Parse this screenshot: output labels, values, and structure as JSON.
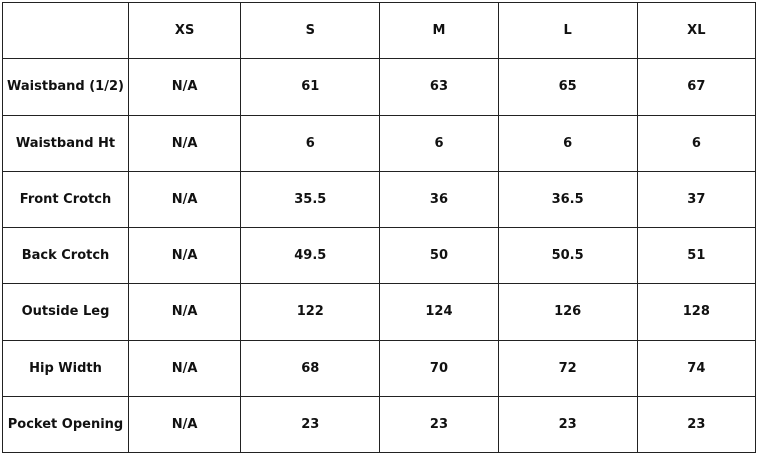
{
  "headers": [
    "",
    "XS",
    "S",
    "M",
    "L",
    "XL"
  ],
  "rows": [
    {
      "label": "Waistband (1/2)",
      "values": [
        "N/A",
        "61",
        "63",
        "65",
        "67"
      ]
    },
    {
      "label": "Waistband Ht",
      "values": [
        "N/A",
        "6",
        "6",
        "6",
        "6"
      ]
    },
    {
      "label": "Front Crotch",
      "values": [
        "N/A",
        "35.5",
        "36",
        "36.5",
        "37"
      ]
    },
    {
      "label": "Back Crotch",
      "values": [
        "N/A",
        "49.5",
        "50",
        "50.5",
        "51"
      ]
    },
    {
      "label": "Outside Leg",
      "values": [
        "N/A",
        "122",
        "124",
        "126",
        "128"
      ]
    },
    {
      "label": "Hip Width",
      "values": [
        "N/A",
        "68",
        "70",
        "72",
        "74"
      ]
    },
    {
      "label": "Pocket Opening",
      "values": [
        "N/A",
        "23",
        "23",
        "23",
        "23"
      ]
    }
  ]
}
